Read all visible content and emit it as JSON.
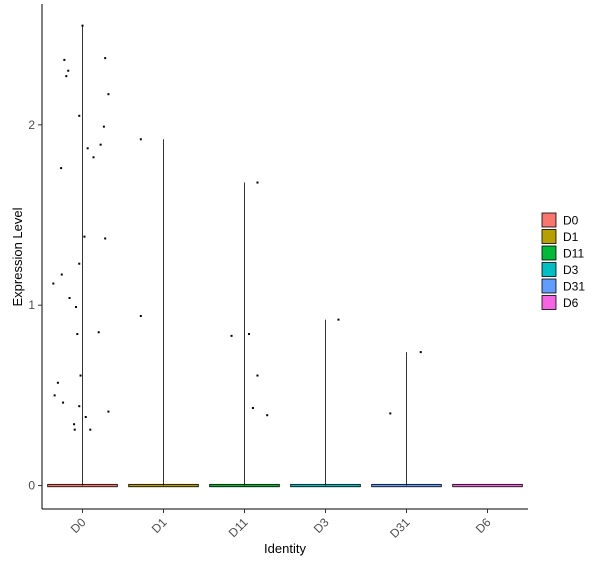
{
  "chart_data": {
    "type": "violin",
    "xlabel": "Identity",
    "ylabel": "Expression Level",
    "categories": [
      "D0",
      "D1",
      "D11",
      "D3",
      "D31",
      "D6"
    ],
    "colors": [
      "#F8766D",
      "#B79F00",
      "#00BA38",
      "#00BFC4",
      "#619CFF",
      "#F564E3"
    ],
    "ylim": [
      -0.13,
      2.67
    ],
    "yticks": [
      0,
      1,
      2
    ],
    "ytick_labels": [
      "0",
      "1",
      "2"
    ],
    "violin_max": [
      2.55,
      1.92,
      1.68,
      0.92,
      0.74,
      0.0
    ],
    "legend": {
      "position": "right",
      "entries": [
        "D0",
        "D1",
        "D11",
        "D3",
        "D31",
        "D6"
      ]
    },
    "grid": false,
    "points": [
      {
        "group": "D0",
        "values": [
          2.55,
          2.36,
          2.3,
          2.27,
          2.05,
          1.87,
          1.82,
          1.76,
          1.38,
          1.23,
          1.17,
          1.12,
          1.04,
          0.99,
          0.84,
          0.61,
          0.57,
          0.5,
          0.46,
          0.44,
          0.34,
          0.31,
          0.38,
          2.37,
          2.17,
          1.99,
          1.89,
          1.37,
          0.85,
          0.41,
          0.31
        ],
        "jitter": [
          0,
          -0.28,
          -0.22,
          -0.25,
          -0.05,
          0.08,
          0.17,
          -0.33,
          0.03,
          -0.05,
          -0.32,
          -0.45,
          -0.2,
          -0.1,
          -0.08,
          -0.03,
          -0.38,
          -0.43,
          -0.3,
          -0.05,
          -0.13,
          -0.12,
          0.05,
          0.35,
          0.4,
          0.33,
          0.28,
          0.35,
          0.25,
          0.4,
          0.12
        ]
      },
      {
        "group": "D1",
        "values": [
          1.92,
          0.94
        ],
        "jitter": [
          -0.35,
          -0.35
        ]
      },
      {
        "group": "D11",
        "values": [
          1.68,
          0.84,
          0.83,
          0.61,
          0.43,
          0.39
        ],
        "jitter": [
          0.2,
          0.07,
          -0.2,
          0.2,
          0.13,
          0.35
        ]
      },
      {
        "group": "D3",
        "values": [
          0.92
        ],
        "jitter": [
          0.2
        ]
      },
      {
        "group": "D31",
        "values": [
          0.74,
          0.4
        ],
        "jitter": [
          0.22,
          -0.25
        ]
      },
      {
        "group": "D6",
        "values": [],
        "jitter": []
      }
    ]
  }
}
